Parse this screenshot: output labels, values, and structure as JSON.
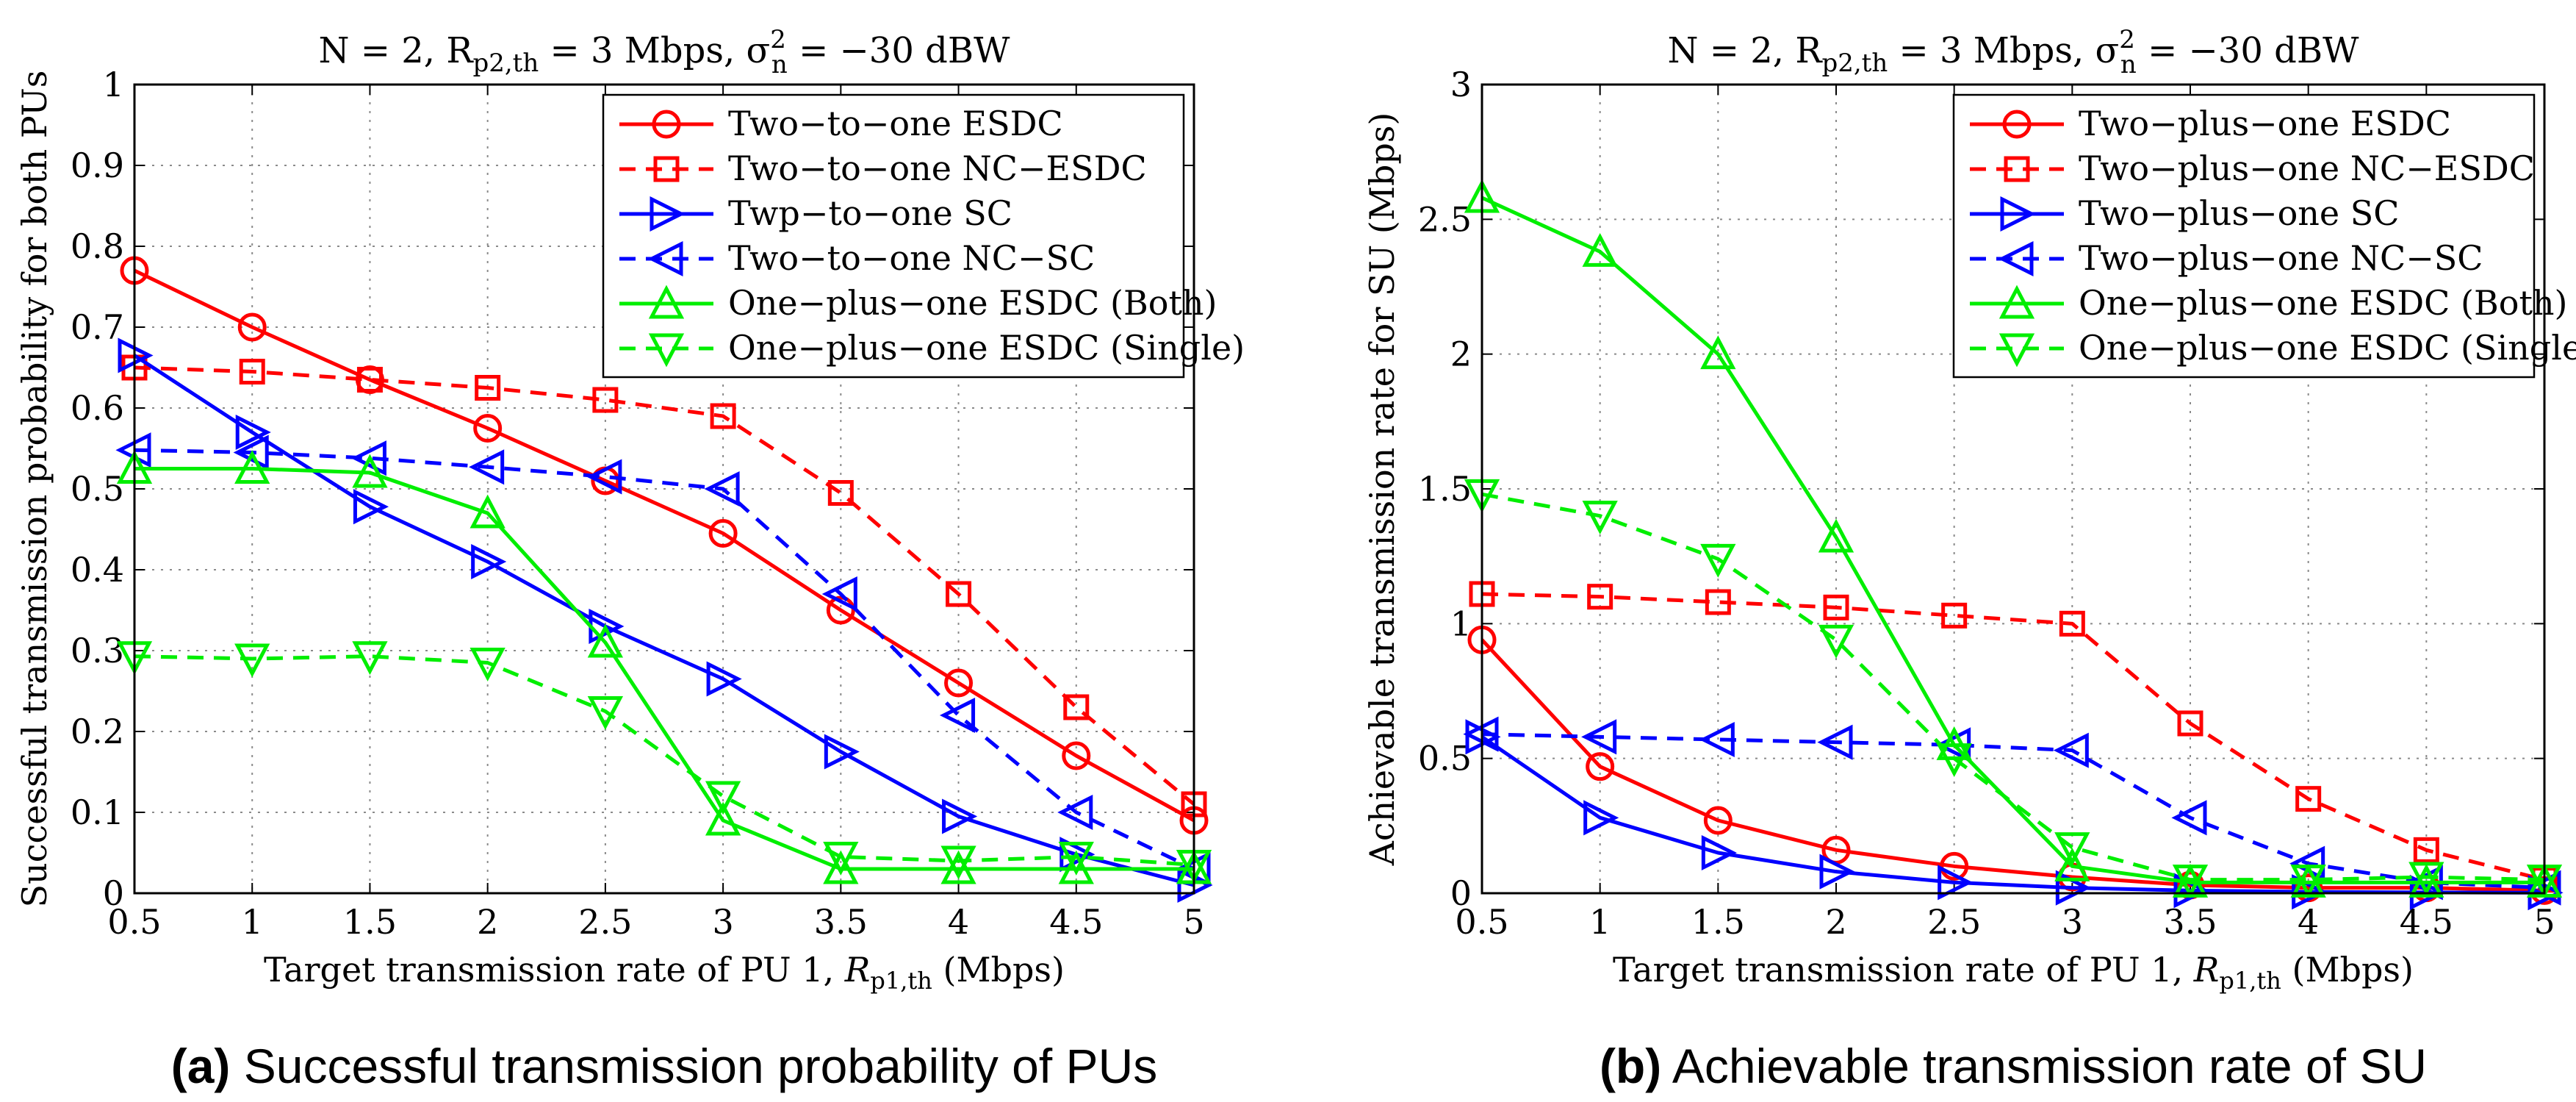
{
  "chart_data": [
    {
      "type": "line",
      "panel_letter": "(a)",
      "caption": "Successful transmission probability of PUs",
      "title": {
        "main": "N = 2, R",
        "sub": "p2,th",
        "mid": " = 3 Mbps, σ",
        "sup": "2",
        "sub2": "n",
        "end": " = −30 dBW"
      },
      "xlabel": {
        "main": "Target transmission rate of PU 1, ",
        "italic": "R",
        "sub": "p1,th",
        "end": " (Mbps)"
      },
      "ylabel": "Successful transmission probability for both PUs",
      "xlim": [
        0.5,
        5
      ],
      "ylim": [
        0,
        1
      ],
      "xticks": [
        0.5,
        1,
        1.5,
        2,
        2.5,
        3,
        3.5,
        4,
        4.5,
        5
      ],
      "yticks": [
        0,
        0.1,
        0.2,
        0.3,
        0.4,
        0.5,
        0.6,
        0.7,
        0.8,
        0.9,
        1
      ],
      "xtick_labels": [
        "0.5",
        "1",
        "1.5",
        "2",
        "2.5",
        "3",
        "3.5",
        "4",
        "4.5",
        "5"
      ],
      "ytick_labels": [
        "0",
        "0.1",
        "0.2",
        "0.3",
        "0.4",
        "0.5",
        "0.6",
        "0.7",
        "0.8",
        "0.9",
        "1"
      ],
      "grid": true,
      "legend_position": "top-right",
      "x": [
        0.5,
        1,
        1.5,
        2,
        2.5,
        3,
        3.5,
        4,
        4.5,
        5
      ],
      "series": [
        {
          "name": "Two−to−one ESDC",
          "color": "#ff0000",
          "dash": "solid",
          "marker": "circle",
          "values": [
            0.77,
            0.7,
            0.635,
            0.575,
            0.51,
            0.445,
            0.35,
            0.26,
            0.17,
            0.09
          ]
        },
        {
          "name": "Two−to−one NC−ESDC",
          "color": "#ff0000",
          "dash": "dashed",
          "marker": "square",
          "values": [
            0.65,
            0.645,
            0.635,
            0.625,
            0.61,
            0.59,
            0.495,
            0.37,
            0.23,
            0.11
          ]
        },
        {
          "name": "Twp−to−one SC",
          "color": "#0000ff",
          "dash": "solid",
          "marker": "triangle-right",
          "values": [
            0.665,
            0.57,
            0.478,
            0.41,
            0.33,
            0.265,
            0.175,
            0.095,
            0.048,
            0.01
          ]
        },
        {
          "name": "Two−to−one NC−SC",
          "color": "#0000ff",
          "dash": "dashed",
          "marker": "triangle-left",
          "values": [
            0.548,
            0.545,
            0.538,
            0.527,
            0.515,
            0.5,
            0.37,
            0.22,
            0.1,
            0.03
          ]
        },
        {
          "name": "One−plus−one ESDC (Both)",
          "color": "#00ee00",
          "dash": "solid",
          "marker": "triangle-up",
          "values": [
            0.525,
            0.525,
            0.52,
            0.47,
            0.31,
            0.09,
            0.03,
            0.03,
            0.03,
            0.03
          ]
        },
        {
          "name": "One−plus−one ESDC (Single)",
          "color": "#00ee00",
          "dash": "dashed",
          "marker": "triangle-down",
          "values": [
            0.293,
            0.29,
            0.293,
            0.285,
            0.225,
            0.12,
            0.045,
            0.04,
            0.045,
            0.035
          ]
        }
      ]
    },
    {
      "type": "line",
      "panel_letter": "(b)",
      "caption": "Achievable transmission rate of SU",
      "title": {
        "main": "N = 2, R",
        "sub": "p2,th",
        "mid": " = 3 Mbps, σ",
        "sup": "2",
        "sub2": "n",
        "end": " = −30 dBW"
      },
      "xlabel": {
        "main": "Target transmission rate of PU 1, ",
        "italic": "R",
        "sub": "p1,th",
        "end": " (Mbps)"
      },
      "ylabel": "Achievable transmission rate for SU (Mbps)",
      "xlim": [
        0.5,
        5
      ],
      "ylim": [
        0,
        3
      ],
      "xticks": [
        0.5,
        1,
        1.5,
        2,
        2.5,
        3,
        3.5,
        4,
        4.5,
        5
      ],
      "yticks": [
        0,
        0.5,
        1,
        1.5,
        2,
        2.5,
        3
      ],
      "xtick_labels": [
        "0.5",
        "1",
        "1.5",
        "2",
        "2.5",
        "3",
        "3.5",
        "4",
        "4.5",
        "5"
      ],
      "ytick_labels": [
        "0",
        "0.5",
        "1",
        "1.5",
        "2",
        "2.5",
        "3"
      ],
      "grid": true,
      "legend_position": "top-right",
      "x": [
        0.5,
        1,
        1.5,
        2,
        2.5,
        3,
        3.5,
        4,
        4.5,
        5
      ],
      "series": [
        {
          "name": "Two−plus−one ESDC",
          "color": "#ff0000",
          "dash": "solid",
          "marker": "circle",
          "values": [
            0.94,
            0.47,
            0.27,
            0.16,
            0.1,
            0.06,
            0.03,
            0.02,
            0.02,
            0.01
          ]
        },
        {
          "name": "Two−plus−one NC−ESDC",
          "color": "#ff0000",
          "dash": "dashed",
          "marker": "square",
          "values": [
            1.11,
            1.1,
            1.08,
            1.06,
            1.03,
            1.0,
            0.63,
            0.35,
            0.16,
            0.05
          ]
        },
        {
          "name": "Two−plus−one SC",
          "color": "#0000ff",
          "dash": "solid",
          "marker": "triangle-right",
          "values": [
            0.58,
            0.28,
            0.15,
            0.08,
            0.04,
            0.02,
            0.01,
            0.005,
            0.003,
            0.002
          ]
        },
        {
          "name": "Two−plus−one NC−SC",
          "color": "#0000ff",
          "dash": "dashed",
          "marker": "triangle-left",
          "values": [
            0.59,
            0.58,
            0.57,
            0.56,
            0.55,
            0.53,
            0.28,
            0.11,
            0.04,
            0.02
          ]
        },
        {
          "name": "One−plus−one ESDC (Both)",
          "color": "#00ee00",
          "dash": "solid",
          "marker": "triangle-up",
          "values": [
            2.58,
            2.38,
            2.0,
            1.32,
            0.55,
            0.1,
            0.04,
            0.04,
            0.04,
            0.04
          ]
        },
        {
          "name": "One−plus−one ESDC (Single)",
          "color": "#00ee00",
          "dash": "dashed",
          "marker": "triangle-down",
          "values": [
            1.48,
            1.4,
            1.24,
            0.94,
            0.5,
            0.17,
            0.05,
            0.05,
            0.06,
            0.05
          ]
        }
      ]
    }
  ]
}
